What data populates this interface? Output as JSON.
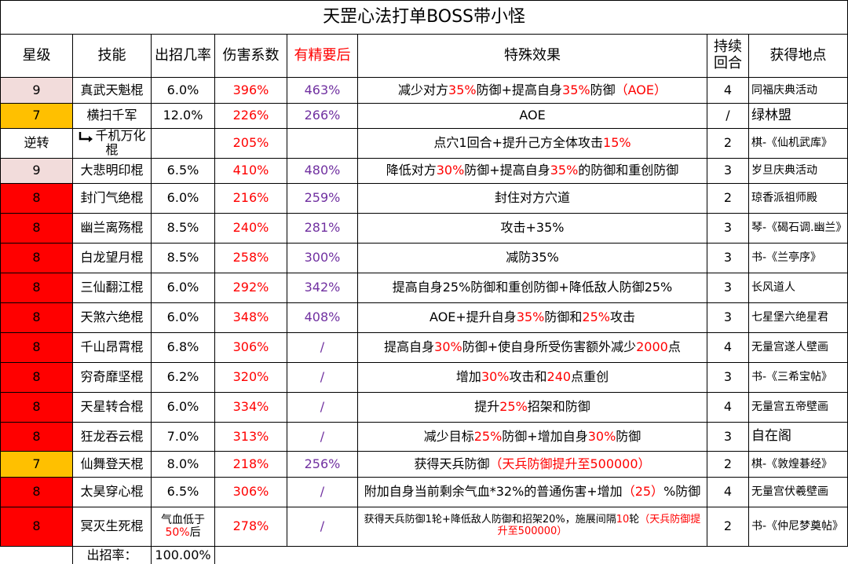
{
  "title": "天罡心法打单BOSS带小怪",
  "headers": [
    "星级",
    "技能",
    "出招几率",
    "伤害系数",
    "有精要后",
    "特殊效果",
    "持续回合",
    "获得地点"
  ],
  "rows": [
    {
      "star": "9",
      "star_color": "#f2dcdb",
      "skill": "真武天魁棍",
      "rate": "6.0%",
      "damage": "396%",
      "refined": "463%",
      "effect": [
        "减少对方",
        "35%",
        "防御+提高自身",
        "35%",
        "防御",
        "（AOE）"
      ],
      "duration": "4",
      "location": "同福庆典活动"
    },
    {
      "star": "7",
      "star_color": "#ffc000",
      "skill": "横扫千军",
      "rate": "12.0%",
      "damage": "226%",
      "refined": "266%",
      "effect": [
        "AOE"
      ],
      "duration": "/",
      "location": "绿林盟"
    },
    {
      "star": "逆转",
      "star_color": "#ffffff",
      "skill": "千机万化棍",
      "rate": null,
      "damage": "205%",
      "refined": null,
      "effect": [
        "点穴1回合+提升己方全体攻击",
        "15%"
      ],
      "duration": "2",
      "location": "棋-《仙机武库》"
    },
    {
      "star": "9",
      "star_color": "#f2dcdb",
      "skill": "大悲明印棍",
      "rate": "6.5%",
      "damage": "410%",
      "refined": "480%",
      "effect": [
        "降低对方",
        "30%",
        "防御+提高自身",
        "35%",
        "的防御和重创防御"
      ],
      "duration": "3",
      "location": "岁旦庆典活动"
    },
    {
      "star": "8",
      "star_color": "#ff0000",
      "skill": "封门气绝棍",
      "rate": "6.0%",
      "damage": "216%",
      "refined": "259%",
      "effect": [
        "封住对方穴道"
      ],
      "duration": "2",
      "location": "琼香派祖师殿"
    },
    {
      "star": "8",
      "star_color": "#ff0000",
      "skill": "幽兰离殇棍",
      "rate": "8.5%",
      "damage": "240%",
      "refined": "281%",
      "effect": [
        "攻击+35%"
      ],
      "duration": "3",
      "location": "琴-《碣石调.幽兰》"
    },
    {
      "star": "8",
      "star_color": "#ff0000",
      "skill": "白龙望月棍",
      "rate": "8.5%",
      "damage": "258%",
      "refined": "300%",
      "effect": [
        "减防35%"
      ],
      "duration": "3",
      "location": "书-《兰亭序》"
    },
    {
      "star": "8",
      "star_color": "#ff0000",
      "skill": "三仙翻江棍",
      "rate": "6.0%",
      "damage": "292%",
      "refined": "342%",
      "effect": [
        "提高自身25%防御和重创防御+降低敌人防御25%"
      ],
      "duration": "3",
      "location": "长风道人"
    },
    {
      "star": "8",
      "star_color": "#ff0000",
      "skill": "天煞六绝棍",
      "rate": "6.0%",
      "damage": "348%",
      "refined": "408%",
      "effect": [
        "AOE+提升自身",
        "35%",
        "防御和",
        "25%",
        "攻击"
      ],
      "duration": "3",
      "location": "七星堡六绝星君"
    },
    {
      "star": "8",
      "star_color": "#ff0000",
      "skill": "千山昂霄棍",
      "rate": "6.8%",
      "damage": "306%",
      "refined": "/",
      "effect": [
        "提高自身",
        "30%",
        "防御+使自身所受伤害额外减少",
        "2000",
        "点"
      ],
      "duration": "4",
      "location": "无量宫遂人壁画"
    },
    {
      "star": "8",
      "star_color": "#ff0000",
      "skill": "穷奇靡坚棍",
      "rate": "6.2%",
      "damage": "320%",
      "refined": "/",
      "effect": [
        "增加",
        "30%",
        "攻击和",
        "240",
        "点重创"
      ],
      "duration": "3",
      "location": "书-《三希宝帖》"
    },
    {
      "star": "8",
      "star_color": "#ff0000",
      "skill": "天星转合棍",
      "rate": "6.0%",
      "damage": "334%",
      "refined": "/",
      "effect": [
        "提升",
        "25%",
        "招架和防御"
      ],
      "duration": "4",
      "location": "无量宫五帝壁画"
    },
    {
      "star": "8",
      "star_color": "#ff0000",
      "skill": "狂龙吞云棍",
      "rate": "7.0%",
      "damage": "313%",
      "refined": "/",
      "effect": [
        "减少目标",
        "25%",
        "防御+增加自身",
        "30%",
        "防御"
      ],
      "duration": "3",
      "location": "自在阁"
    },
    {
      "star": "7",
      "star_color": "#ffc000",
      "skill": "仙舞登天棍",
      "rate": "8.0%",
      "damage": "218%",
      "refined": "256%",
      "effect": [
        "获得天兵防御",
        "（天兵防御提升至500000）"
      ],
      "duration": "2",
      "location": "棋-《敦煌碁经》"
    },
    {
      "star": "8",
      "star_color": "#ff0000",
      "skill": "太昊穿心棍",
      "rate": "6.5%",
      "damage": "306%",
      "refined": "/",
      "effect": [
        "附加自身当前剩余气血*32%的普通伤害+增加",
        "（25）",
        "%防御"
      ],
      "duration": "4",
      "location": "无量宫伏羲壁画"
    },
    {
      "star": "8",
      "star_color": "#ff0000",
      "skill": "冥灭生死棍",
      "rate": [
        "气血低于",
        "50%",
        "后"
      ],
      "damage": "278%",
      "refined": "/",
      "effect": [
        "获得天兵防御1轮+降低敌人防御和招架20%，施展间隔",
        "10",
        "轮",
        "（天兵防御提升至500000）"
      ],
      "duration": "2",
      "location": "书-《仲尼梦奠帖》"
    }
  ],
  "footer": {
    "label": "出招率：",
    "total": "100.00%"
  }
}
